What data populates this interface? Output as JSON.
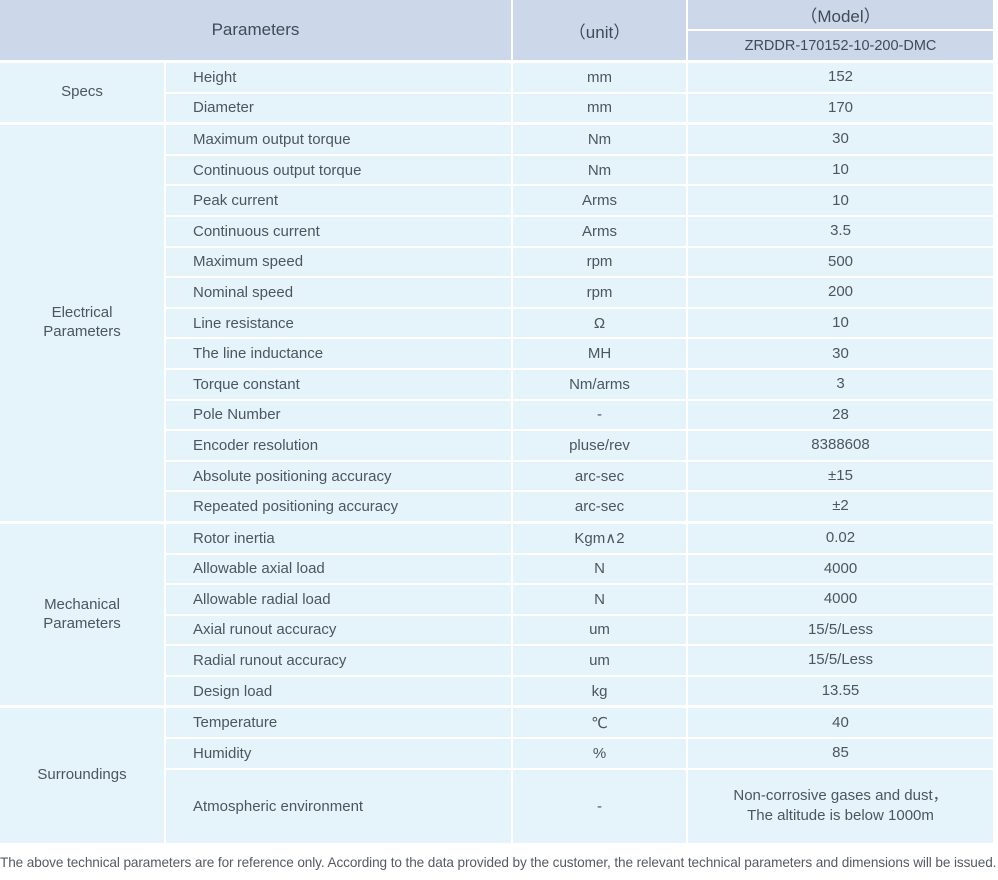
{
  "colors": {
    "header_bg": "#ccd7ea",
    "row_bg": "#e5f3fb",
    "header_text": "#414b56",
    "body_text": "#4c5660"
  },
  "table": {
    "header": {
      "parameters": "Parameters",
      "unit": "（unit）",
      "model": "（Model）",
      "model_number": "ZRDDR-170152-10-200-DMC"
    },
    "sections": [
      {
        "group": "Specs",
        "rows": [
          {
            "param": "Height",
            "unit": "mm",
            "value": "152"
          },
          {
            "param": "Diameter",
            "unit": "mm",
            "value": "170"
          }
        ]
      },
      {
        "group": "Electrical Parameters",
        "rows": [
          {
            "param": "Maximum output torque",
            "unit": "Nm",
            "value": "30"
          },
          {
            "param": "Continuous output torque",
            "unit": "Nm",
            "value": "10"
          },
          {
            "param": "Peak current",
            "unit": "Arms",
            "value": "10"
          },
          {
            "param": "Continuous current",
            "unit": "Arms",
            "value": "3.5"
          },
          {
            "param": "Maximum speed",
            "unit": "rpm",
            "value": "500"
          },
          {
            "param": "Nominal speed",
            "unit": "rpm",
            "value": "200"
          },
          {
            "param": "Line resistance",
            "unit": "Ω",
            "value": "10"
          },
          {
            "param": "The line inductance",
            "unit": "MH",
            "value": "30"
          },
          {
            "param": "Torque constant",
            "unit": "Nm/arms",
            "value": "3"
          },
          {
            "param": "Pole Number",
            "unit": "-",
            "value": "28"
          },
          {
            "param": "Encoder resolution",
            "unit": "pluse/rev",
            "value": "8388608"
          },
          {
            "param": "Absolute positioning accuracy",
            "unit": "arc-sec",
            "value": "±15"
          },
          {
            "param": "Repeated positioning accuracy",
            "unit": "arc-sec",
            "value": "±2"
          }
        ]
      },
      {
        "group": "Mechanical Parameters",
        "rows": [
          {
            "param": "Rotor inertia",
            "unit": "Kgm∧2",
            "value": "0.02"
          },
          {
            "param": "Allowable axial load",
            "unit": "N",
            "value": "4000"
          },
          {
            "param": "Allowable radial load",
            "unit": "N",
            "value": "4000"
          },
          {
            "param": "Axial runout accuracy",
            "unit": "um",
            "value": "15/5/Less"
          },
          {
            "param": "Radial runout accuracy",
            "unit": "um",
            "value": "15/5/Less"
          },
          {
            "param": "Design load",
            "unit": "kg",
            "value": "13.55"
          }
        ]
      },
      {
        "group": "Surroundings",
        "rows": [
          {
            "param": "Temperature",
            "unit": "℃",
            "value": "40"
          },
          {
            "param": "Humidity",
            "unit": "%",
            "value": "85"
          },
          {
            "param": "Atmospheric environment",
            "unit": "-",
            "value": "Non-corrosive gases and dust，\nThe altitude is below 1000m",
            "tall": true
          }
        ]
      }
    ]
  },
  "footer": {
    "note": "The above technical parameters are for reference only. According to the data provided by the customer, the relevant technical parameters and dimensions will be issued."
  }
}
